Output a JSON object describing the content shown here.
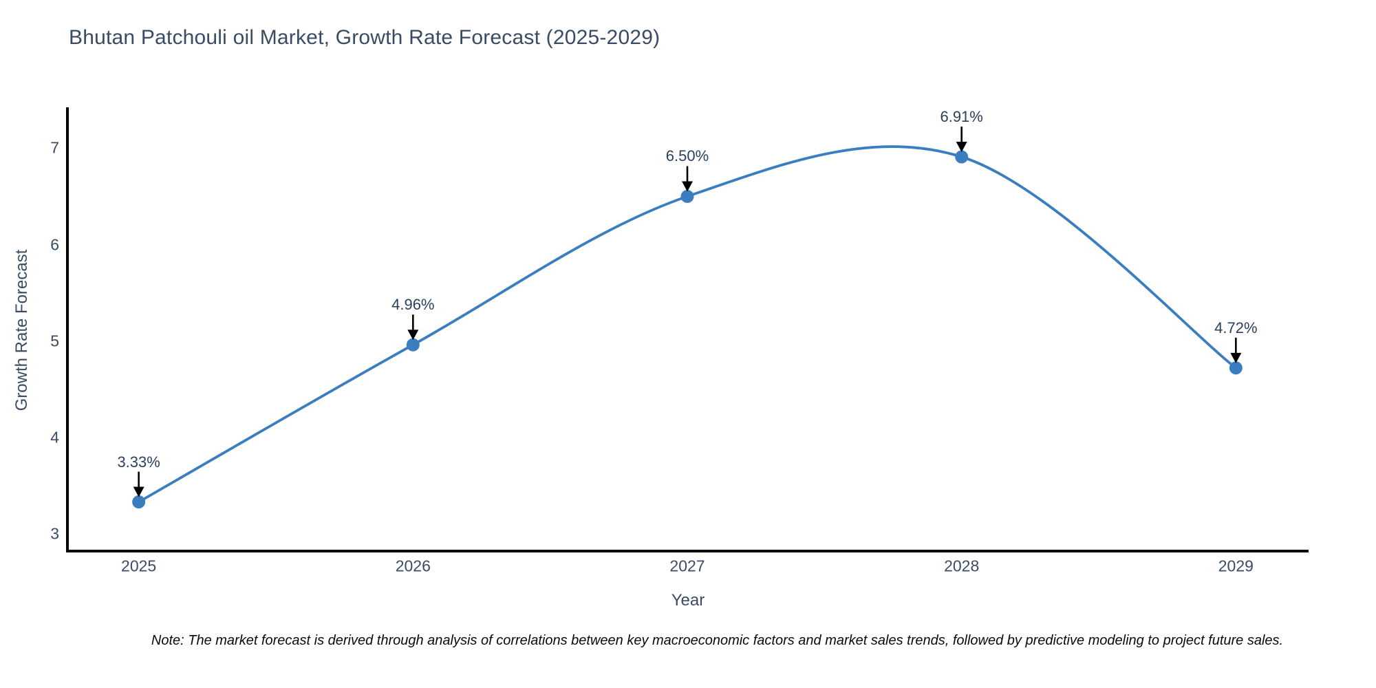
{
  "title": "Bhutan Patchouli oil Market, Growth Rate Forecast (2025-2029)",
  "note": "Note: The market forecast is derived through analysis of correlations between key macroeconomic factors and market sales trends, followed by predictive modeling to project future sales.",
  "chart_data": {
    "type": "line",
    "title": "Bhutan Patchouli oil Market, Growth Rate Forecast (2025-2029)",
    "xlabel": "Year",
    "ylabel": "Growth Rate Forecast",
    "x": [
      2025,
      2026,
      2027,
      2028,
      2029
    ],
    "y": [
      3.33,
      4.96,
      6.5,
      6.91,
      4.72
    ],
    "point_labels": [
      "3.33%",
      "4.96%",
      "6.50%",
      "6.91%",
      "4.72%"
    ],
    "x_tick_labels": [
      "2025",
      "2026",
      "2027",
      "2028",
      "2029"
    ],
    "y_tick_values": [
      3,
      4,
      5,
      6,
      7
    ],
    "xlim": [
      2024.74,
      2029.26
    ],
    "ylim": [
      2.82,
      7.41
    ],
    "grid": false,
    "legend": false,
    "line_shape": "spline",
    "line_color": "#3a7ebf",
    "marker_color": "#3a7ebf",
    "axis_color": "#000000",
    "annotation_arrow_color": "#000000",
    "text_color": "#3a4b63"
  }
}
